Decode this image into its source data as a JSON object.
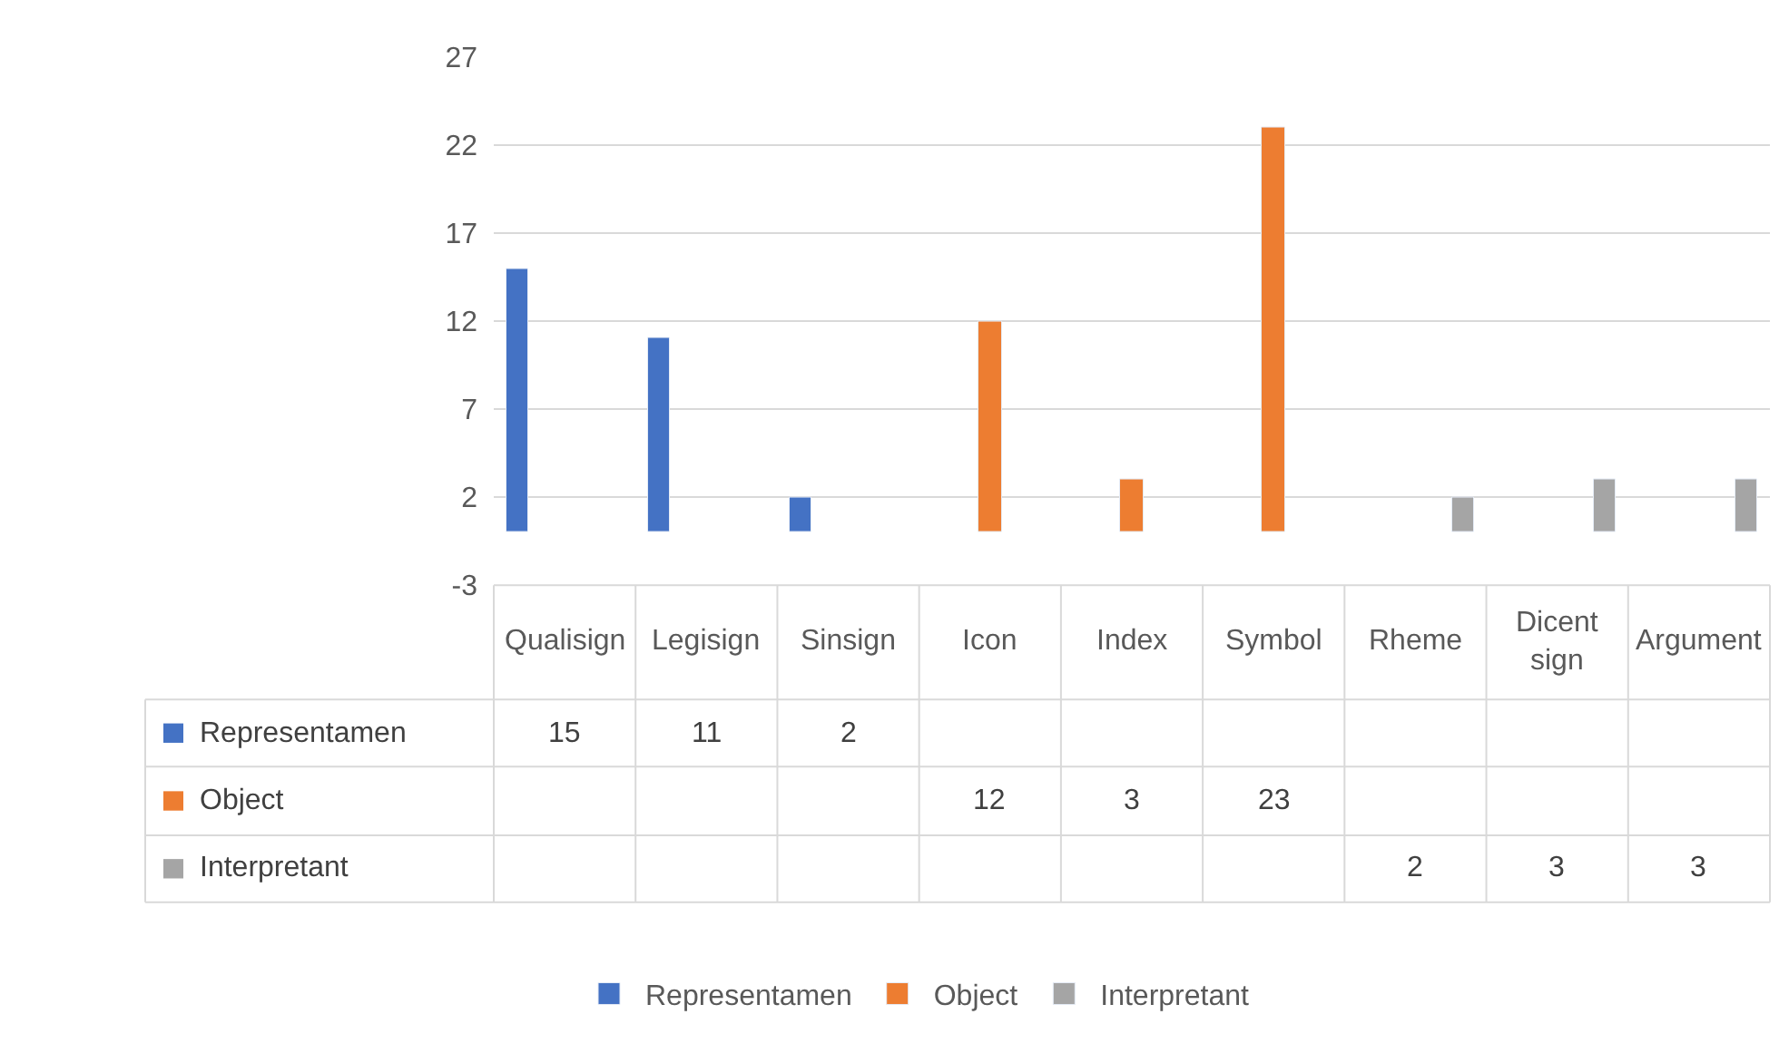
{
  "chart_data": {
    "type": "bar",
    "categories": [
      "Qualisign",
      "Legisign",
      "Sinsign",
      "Icon",
      "Index",
      "Symbol",
      "Rheme",
      "Dicent sign",
      "Argument"
    ],
    "series": [
      {
        "name": "Representamen",
        "color": "#4472c4",
        "values": [
          15,
          11,
          2,
          null,
          null,
          null,
          null,
          null,
          null
        ]
      },
      {
        "name": "Object",
        "color": "#ed7d31",
        "values": [
          null,
          null,
          null,
          12,
          3,
          23,
          null,
          null,
          null
        ]
      },
      {
        "name": "Interpretant",
        "color": "#a5a5a5",
        "values": [
          null,
          null,
          null,
          null,
          null,
          null,
          2,
          3,
          3
        ]
      }
    ],
    "ylim": [
      -3,
      27
    ],
    "yticks": [
      -3,
      2,
      7,
      12,
      17,
      22,
      27
    ],
    "grid": "y",
    "legend": "bottom",
    "data_labels": true
  }
}
